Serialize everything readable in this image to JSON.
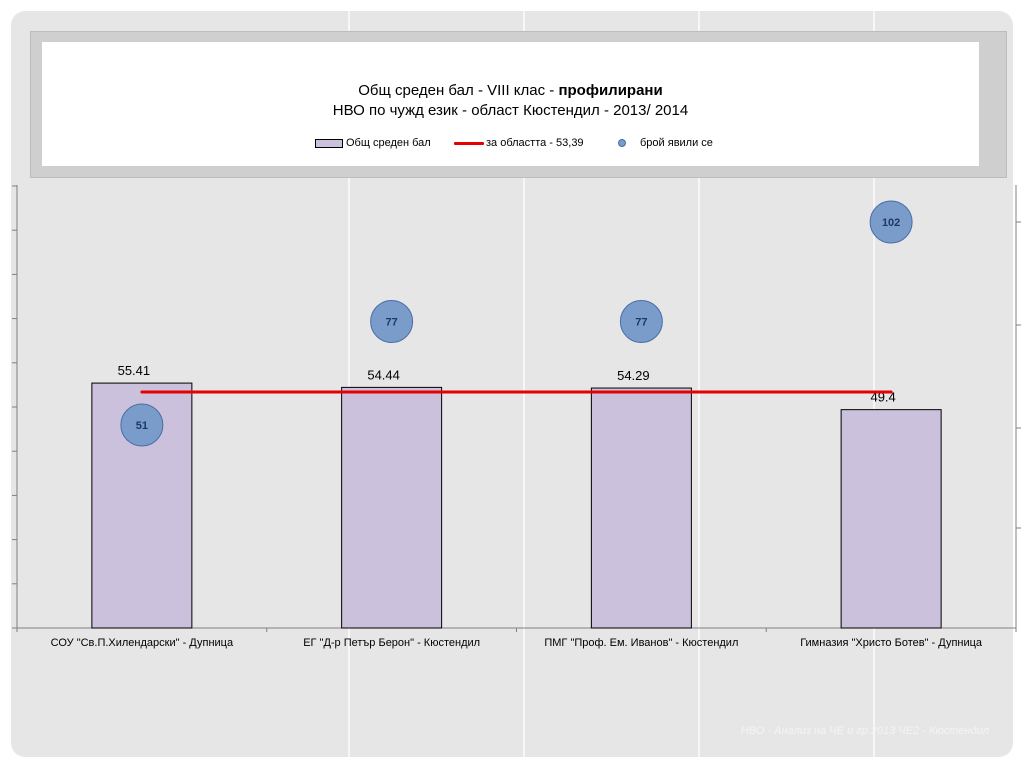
{
  "chart_data": {
    "type": "bar",
    "title_line1": "Общ среден бал - VIII клас - ",
    "title_line1_bold": "профилирани",
    "title_line2": "НВО по чужд език - област Кюстендил - 2013/ 2014",
    "categories": [
      "СОУ \"Св.П.Хилендарски\" - Дупница",
      "ЕГ \"Д-р Петър Берон\" - Кюстендил",
      "ПМГ \"Проф. Ем. Иванов\" - Кюстендил",
      "Гимназия \"Христо Ботев\" - Дупница"
    ],
    "series": [
      {
        "name": "Общ среден бал",
        "values": [
          55.41,
          54.44,
          54.29,
          49.4
        ],
        "labels": [
          "55.41",
          "54.44",
          "54.29",
          "49.4"
        ],
        "color": "#ccc1dc"
      },
      {
        "name": "за областта - 53,39",
        "type": "line",
        "values": [
          53.39,
          53.39,
          53.39,
          53.39
        ],
        "color": "#e60000"
      },
      {
        "name": "брой явили се",
        "type": "scatter",
        "values": [
          51,
          77,
          77,
          102
        ],
        "color": "#7a9ccb"
      }
    ],
    "ylim": [
      0,
      100
    ],
    "y2lim": [
      0,
      200
    ],
    "legend_position": "top"
  },
  "footer_text": "НВО - Анализ на ЧЕ и гр.2013 ЧЕ2 - Кюстендил"
}
